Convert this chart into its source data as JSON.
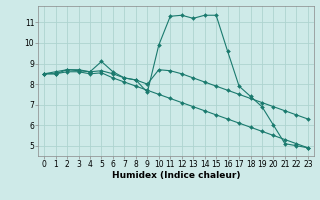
{
  "background_color": "#ceeae8",
  "grid_color": "#aed4d0",
  "line_color": "#1a7a6e",
  "xlabel": "Humidex (Indice chaleur)",
  "xlim": [
    -0.5,
    23.5
  ],
  "ylim": [
    4.5,
    11.8
  ],
  "yticks": [
    5,
    6,
    7,
    8,
    9,
    10,
    11
  ],
  "xticks": [
    0,
    1,
    2,
    3,
    4,
    5,
    6,
    7,
    8,
    9,
    10,
    11,
    12,
    13,
    14,
    15,
    16,
    17,
    18,
    19,
    20,
    21,
    22,
    23
  ],
  "series": [
    [
      8.5,
      8.6,
      8.7,
      8.7,
      8.6,
      9.1,
      8.6,
      8.3,
      8.2,
      7.6,
      9.9,
      11.3,
      11.35,
      11.2,
      11.35,
      11.35,
      9.6,
      7.9,
      7.4,
      6.9,
      6.0,
      5.1,
      5.0,
      4.9
    ],
    [
      8.5,
      8.5,
      8.7,
      8.65,
      8.6,
      8.65,
      8.5,
      8.3,
      8.2,
      8.0,
      8.7,
      8.65,
      8.5,
      8.3,
      8.1,
      7.9,
      7.7,
      7.5,
      7.3,
      7.1,
      6.9,
      6.7,
      6.5,
      6.3
    ],
    [
      8.5,
      8.5,
      8.6,
      8.6,
      8.5,
      8.55,
      8.3,
      8.1,
      7.9,
      7.7,
      7.5,
      7.3,
      7.1,
      6.9,
      6.7,
      6.5,
      6.3,
      6.1,
      5.9,
      5.7,
      5.5,
      5.3,
      5.1,
      4.9
    ]
  ],
  "tick_fontsize": 5.5,
  "xlabel_fontsize": 6.5,
  "linewidth": 0.8,
  "markersize": 2.0
}
